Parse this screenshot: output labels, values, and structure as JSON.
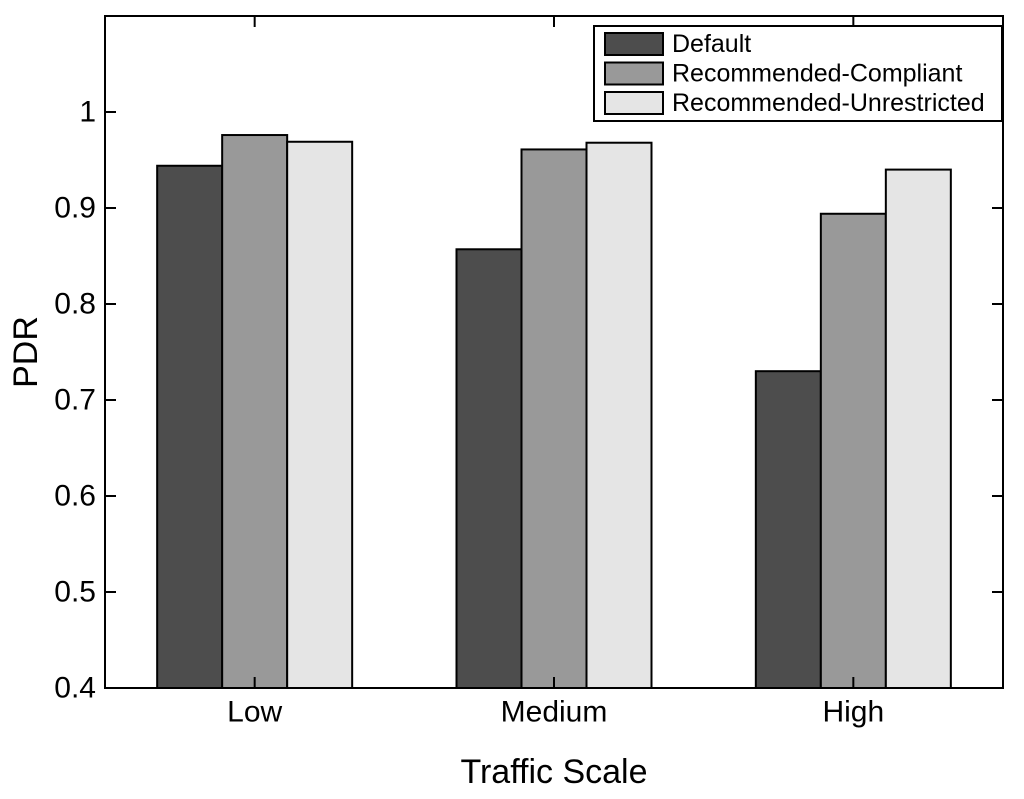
{
  "chart_data": {
    "type": "bar",
    "title": "",
    "xlabel": "Traffic Scale",
    "ylabel": "PDR",
    "categories": [
      "Low",
      "Medium",
      "High"
    ],
    "series": [
      {
        "name": "Default",
        "color": "#4d4d4d",
        "values": [
          0.944,
          0.857,
          0.73
        ]
      },
      {
        "name": "Recommended-Compliant",
        "color": "#999999",
        "values": [
          0.976,
          0.961,
          0.894
        ]
      },
      {
        "name": "Recommended-Unrestricted",
        "color": "#e5e5e5",
        "values": [
          0.969,
          0.968,
          0.94
        ]
      }
    ],
    "ylim": [
      0.4,
      1.1
    ],
    "yticks": [
      0.4,
      0.5,
      0.6,
      0.7,
      0.8,
      0.9,
      1.0
    ],
    "ytick_labels": [
      "0.4",
      "0.5",
      "0.6",
      "0.7",
      "0.8",
      "0.9",
      "1"
    ],
    "grid": false,
    "legend_position": "top-right",
    "axis_color": "#000000",
    "bar_edge_color": "#000000",
    "background": "#ffffff"
  }
}
